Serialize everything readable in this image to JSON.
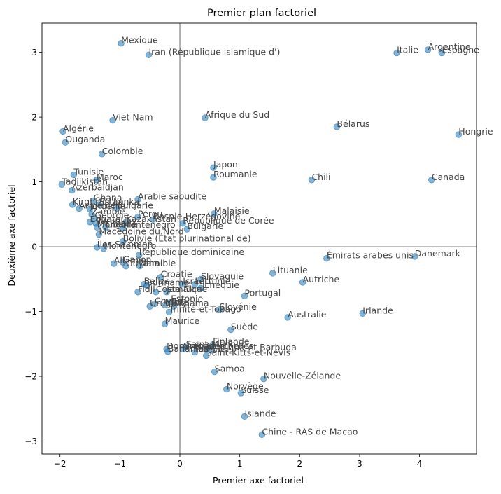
{
  "chart_data": {
    "type": "scatter",
    "title": "Premier plan factoriel",
    "xlabel": "Premier axe factoriel",
    "ylabel": "Deuxième axe factoriel",
    "xlim": [
      -2.3,
      4.95
    ],
    "ylim": [
      -3.2,
      3.45
    ],
    "xticks": [
      -2,
      -1,
      0,
      1,
      2,
      3,
      4
    ],
    "yticks": [
      -3,
      -2,
      -1,
      0,
      1,
      2,
      3
    ],
    "reference_lines": {
      "x": 0,
      "y": 0
    },
    "grid": false,
    "point_color": "#1f77b4",
    "points": [
      {
        "label": "Mexique",
        "x": -0.98,
        "y": 3.14
      },
      {
        "label": "Iran (République islamique d')",
        "x": -0.52,
        "y": 2.96
      },
      {
        "label": "Italie",
        "x": 3.62,
        "y": 2.99
      },
      {
        "label": "Argentine",
        "x": 4.14,
        "y": 3.04
      },
      {
        "label": "Espagne",
        "x": 4.37,
        "y": 2.99
      },
      {
        "label": "Viet Nam",
        "x": -1.12,
        "y": 1.95
      },
      {
        "label": "Afrique du Sud",
        "x": 0.42,
        "y": 1.99
      },
      {
        "label": "Bélarus",
        "x": 2.62,
        "y": 1.85
      },
      {
        "label": "Hongrie",
        "x": 4.65,
        "y": 1.73
      },
      {
        "label": "Algérie",
        "x": -1.95,
        "y": 1.78
      },
      {
        "label": "Ouganda",
        "x": -1.91,
        "y": 1.61
      },
      {
        "label": "Colombie",
        "x": -1.3,
        "y": 1.43
      },
      {
        "label": "Japon",
        "x": 0.56,
        "y": 1.22
      },
      {
        "label": "Roumanie",
        "x": 0.56,
        "y": 1.07
      },
      {
        "label": "Chili",
        "x": 2.2,
        "y": 1.03
      },
      {
        "label": "Canada",
        "x": 4.2,
        "y": 1.03
      },
      {
        "label": "Tunisie",
        "x": -1.77,
        "y": 1.11
      },
      {
        "label": "Maroc",
        "x": -1.39,
        "y": 1.03
      },
      {
        "label": "Tadjikistan",
        "x": -1.97,
        "y": 0.96
      },
      {
        "label": "Azerbaïdjan",
        "x": -1.8,
        "y": 0.87
      },
      {
        "label": "Arabie saoudite",
        "x": -0.7,
        "y": 0.73
      },
      {
        "label": "Ghana",
        "x": -1.44,
        "y": 0.71
      },
      {
        "label": "Kirghizistan",
        "x": -1.79,
        "y": 0.65
      },
      {
        "label": "Sri Lanka",
        "x": -1.35,
        "y": 0.65
      },
      {
        "label": "Arménie",
        "x": -1.68,
        "y": 0.59
      },
      {
        "label": "Bulgarie",
        "x": -1.05,
        "y": 0.59
      },
      {
        "label": "Jordanie",
        "x": -1.5,
        "y": 0.58
      },
      {
        "label": "Malaisie",
        "x": 0.57,
        "y": 0.51
      },
      {
        "label": "Zambie",
        "x": -1.47,
        "y": 0.5
      },
      {
        "label": "Géorgie",
        "x": -1.42,
        "y": 0.44
      },
      {
        "label": "Pérou",
        "x": -0.7,
        "y": 0.46
      },
      {
        "label": "Bosnie-Herzégovine",
        "x": -0.45,
        "y": 0.42
      },
      {
        "label": "Équateur",
        "x": -1.5,
        "y": 0.38
      },
      {
        "label": "Paraguay",
        "x": -1.4,
        "y": 0.36
      },
      {
        "label": "Kazakhstan",
        "x": -0.9,
        "y": 0.38
      },
      {
        "label": "République de Corée",
        "x": 0.05,
        "y": 0.36
      },
      {
        "label": "Mongolie",
        "x": -1.38,
        "y": 0.3
      },
      {
        "label": "Liban",
        "x": -1.24,
        "y": 0.3
      },
      {
        "label": "Monténégro",
        "x": -0.95,
        "y": 0.29
      },
      {
        "label": "Bulgarie",
        "x": 0.12,
        "y": 0.27
      },
      {
        "label": "Macédoine du Nord",
        "x": -1.35,
        "y": 0.19
      },
      {
        "label": "Bolivie (État plurinational de)",
        "x": -0.95,
        "y": 0.08
      },
      {
        "label": "Îles Salomon",
        "x": -1.38,
        "y": -0.01
      },
      {
        "label": "Monténégro",
        "x": -1.27,
        "y": -0.03
      },
      {
        "label": "République dominicaine",
        "x": -0.68,
        "y": -0.13
      },
      {
        "label": "Émirats arabes unis",
        "x": 2.45,
        "y": -0.18
      },
      {
        "label": "Danemark",
        "x": 3.92,
        "y": -0.15
      },
      {
        "label": "Albanie",
        "x": -1.1,
        "y": -0.26
      },
      {
        "label": "Gabon",
        "x": -0.95,
        "y": -0.24
      },
      {
        "label": "Guyana",
        "x": -0.9,
        "y": -0.3
      },
      {
        "label": "Namibie",
        "x": -0.67,
        "y": -0.3
      },
      {
        "label": "Lituanie",
        "x": 1.55,
        "y": -0.41
      },
      {
        "label": "Croatie",
        "x": -0.32,
        "y": -0.47
      },
      {
        "label": "Slovaquie",
        "x": 0.35,
        "y": -0.5
      },
      {
        "label": "Autriche",
        "x": 2.05,
        "y": -0.55
      },
      {
        "label": "Suriname",
        "x": -0.55,
        "y": -0.6
      },
      {
        "label": "Belize",
        "x": -0.6,
        "y": -0.58
      },
      {
        "label": "Israël",
        "x": 0.05,
        "y": -0.58
      },
      {
        "label": "Lettonie",
        "x": 0.25,
        "y": -0.58
      },
      {
        "label": "Tchéquie",
        "x": 0.35,
        "y": -0.64
      },
      {
        "label": "Fidji",
        "x": -0.7,
        "y": -0.7
      },
      {
        "label": "Costa Rica",
        "x": -0.4,
        "y": -0.7
      },
      {
        "label": "Jamaïque",
        "x": -0.22,
        "y": -0.7
      },
      {
        "label": "Portugal",
        "x": 1.08,
        "y": -0.76
      },
      {
        "label": "Estonie",
        "x": -0.15,
        "y": -0.85
      },
      {
        "label": "Slovénie",
        "x": 0.66,
        "y": -0.97
      },
      {
        "label": "Trinité-et-Tobago",
        "x": -0.18,
        "y": -1.01
      },
      {
        "label": "Uruguay",
        "x": -0.5,
        "y": -0.92
      },
      {
        "label": "Chypre",
        "x": -0.42,
        "y": -0.88
      },
      {
        "label": "Malte",
        "x": -0.25,
        "y": -0.9
      },
      {
        "label": "Panama",
        "x": -0.1,
        "y": -0.92
      },
      {
        "label": "Australie",
        "x": 1.8,
        "y": -1.09
      },
      {
        "label": "Irlande",
        "x": 3.05,
        "y": -1.03
      },
      {
        "label": "Maurice",
        "x": -0.25,
        "y": -1.19
      },
      {
        "label": "Suède",
        "x": 0.85,
        "y": -1.28
      },
      {
        "label": "Finlande",
        "x": 0.55,
        "y": -1.51
      },
      {
        "label": "Saint-Marin",
        "x": 0.1,
        "y": -1.55
      },
      {
        "label": "Dominique",
        "x": -0.22,
        "y": -1.58
      },
      {
        "label": "Grenade",
        "x": 0.05,
        "y": -1.58
      },
      {
        "label": "Seychelles",
        "x": 0.45,
        "y": -1.58
      },
      {
        "label": "Antigua-et-Barbuda",
        "x": 0.52,
        "y": -1.6
      },
      {
        "label": "Bahamas",
        "x": -0.2,
        "y": -1.62
      },
      {
        "label": "Barbade",
        "x": 0.25,
        "y": -1.63
      },
      {
        "label": "Saint-Kitts-et-Nevis",
        "x": 0.44,
        "y": -1.68
      },
      {
        "label": "Samoa",
        "x": 0.58,
        "y": -1.93
      },
      {
        "label": "Nouvelle-Zélande",
        "x": 1.4,
        "y": -2.04
      },
      {
        "label": "Norvège",
        "x": 0.78,
        "y": -2.2
      },
      {
        "label": "Suisse",
        "x": 1.02,
        "y": -2.26
      },
      {
        "label": "Islande",
        "x": 1.08,
        "y": -2.62
      },
      {
        "label": "Chine - RAS de Macao",
        "x": 1.37,
        "y": -2.9
      }
    ]
  }
}
